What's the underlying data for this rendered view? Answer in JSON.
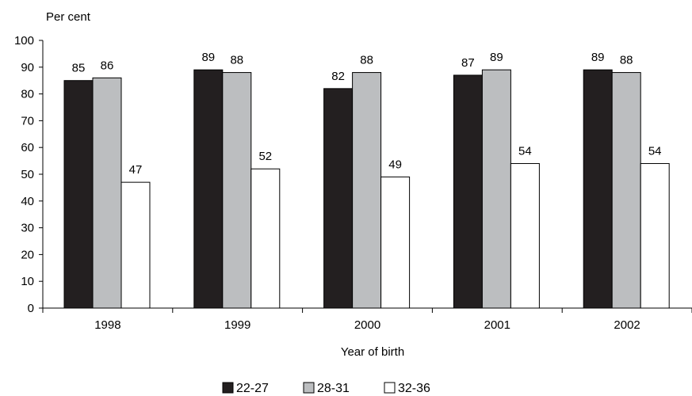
{
  "chart_data": {
    "type": "bar",
    "title": "",
    "ylabel": "Per cent",
    "xlabel": "Year of birth",
    "categories": [
      "1998",
      "1999",
      "2000",
      "2001",
      "2002"
    ],
    "ylim": [
      0,
      100
    ],
    "yticks": [
      0,
      10,
      20,
      30,
      40,
      50,
      60,
      70,
      80,
      90,
      100
    ],
    "grid": false,
    "legend_position": "bottom",
    "series": [
      {
        "name": "22-27",
        "color": "#231f20",
        "values": [
          85,
          89,
          82,
          87,
          89
        ]
      },
      {
        "name": "28-31",
        "color": "#bcbec0",
        "values": [
          86,
          88,
          88,
          89,
          88
        ]
      },
      {
        "name": "32-36",
        "color": "#ffffff",
        "values": [
          47,
          52,
          49,
          54,
          54
        ]
      }
    ],
    "data_labels": [
      [
        "85",
        "86",
        "47"
      ],
      [
        "89",
        "88",
        "52"
      ],
      [
        "82",
        "88",
        "49"
      ],
      [
        "87",
        "89",
        "54"
      ],
      [
        "89",
        "88",
        "54"
      ]
    ]
  }
}
